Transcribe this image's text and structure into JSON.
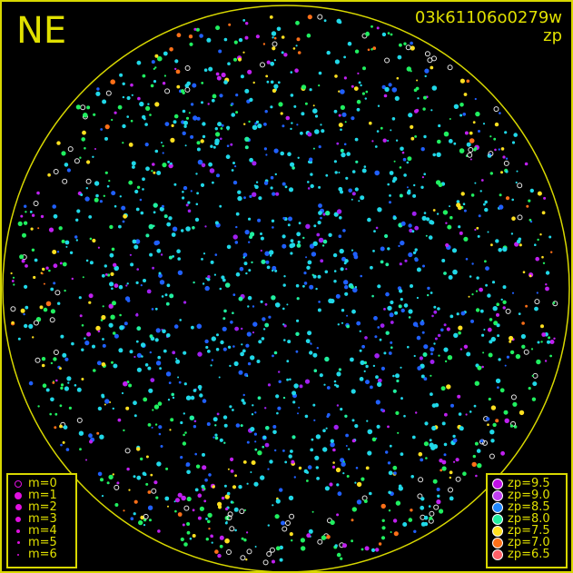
{
  "direction_label": "NE",
  "title": "03k61106o0279w",
  "subtitle": "zp",
  "colors": {
    "frame": "#d8d800",
    "text": "#e0e000",
    "background": "#000000"
  },
  "magnitude_legend": [
    {
      "label": "m=0",
      "symbol": "open-circle",
      "size": 6
    },
    {
      "label": "m=1",
      "symbol": "filled-circle",
      "size": 8
    },
    {
      "label": "m=2",
      "symbol": "filled-circle",
      "size": 7
    },
    {
      "label": "m=3",
      "symbol": "filled-circle",
      "size": 6
    },
    {
      "label": "m=4",
      "symbol": "filled-circle",
      "size": 4
    },
    {
      "label": "m=5",
      "symbol": "filled-circle",
      "size": 3
    },
    {
      "label": "m=6",
      "symbol": "filled-circle",
      "size": 2
    }
  ],
  "zp_legend": [
    {
      "label": "zp=9.5",
      "color": "#c010e8"
    },
    {
      "label": "zp=9.0",
      "color": "#c040f0"
    },
    {
      "label": "zp=8.5",
      "color": "#2088ff"
    },
    {
      "label": "zp=8.0",
      "color": "#20f0a0"
    },
    {
      "label": "zp=7.5",
      "color": "#ffe020"
    },
    {
      "label": "zp=7.0",
      "color": "#ff7018"
    },
    {
      "label": "zp=6.5",
      "color": "#ff6068"
    }
  ]
}
